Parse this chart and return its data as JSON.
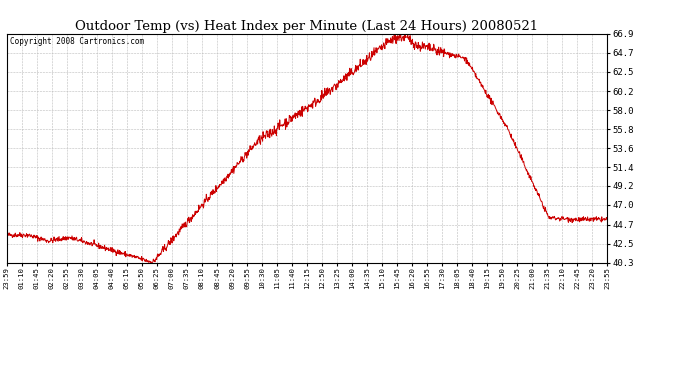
{
  "title": "Outdoor Temp (vs) Heat Index per Minute (Last 24 Hours) 20080521",
  "copyright": "Copyright 2008 Cartronics.com",
  "line_color": "#cc0000",
  "background_color": "#ffffff",
  "grid_color": "#bbbbbb",
  "yticks": [
    40.3,
    42.5,
    44.7,
    47.0,
    49.2,
    51.4,
    53.6,
    55.8,
    58.0,
    60.2,
    62.5,
    64.7,
    66.9
  ],
  "ymin": 40.3,
  "ymax": 66.9,
  "xtick_labels": [
    "23:59",
    "01:10",
    "01:45",
    "02:20",
    "02:55",
    "03:30",
    "04:05",
    "04:40",
    "05:15",
    "05:50",
    "06:25",
    "07:00",
    "07:35",
    "08:10",
    "08:45",
    "09:20",
    "09:55",
    "10:30",
    "11:05",
    "11:40",
    "12:15",
    "12:50",
    "13:25",
    "14:00",
    "14:35",
    "15:10",
    "15:45",
    "16:20",
    "16:55",
    "17:30",
    "18:05",
    "18:40",
    "19:15",
    "19:50",
    "20:25",
    "21:00",
    "21:35",
    "22:10",
    "22:45",
    "23:20",
    "23:55"
  ],
  "figwidth": 6.9,
  "figheight": 3.75,
  "dpi": 100
}
